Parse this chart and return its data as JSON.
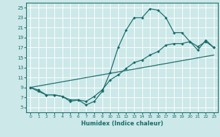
{
  "xlabel": "Humidex (Indice chaleur)",
  "bg_color": "#cce8e8",
  "grid_color": "#ffffff",
  "line_color": "#1a6b6b",
  "xlim": [
    -0.5,
    23.5
  ],
  "ylim": [
    4.0,
    26.0
  ],
  "yticks": [
    5,
    7,
    9,
    11,
    13,
    15,
    17,
    19,
    21,
    23,
    25
  ],
  "xticks": [
    0,
    1,
    2,
    3,
    4,
    5,
    6,
    7,
    8,
    9,
    10,
    11,
    12,
    13,
    14,
    15,
    16,
    17,
    18,
    19,
    20,
    21,
    22,
    23
  ],
  "line1_x": [
    0,
    1,
    2,
    3,
    4,
    5,
    6,
    7,
    8,
    9,
    10,
    11,
    12,
    13,
    14,
    15,
    16,
    17,
    18,
    19,
    20,
    21,
    22,
    23
  ],
  "line1_y": [
    9,
    8.2,
    7.5,
    7.5,
    7.2,
    6.2,
    6.5,
    5.5,
    6.2,
    8.2,
    12,
    17,
    20.5,
    23,
    23,
    24.8,
    24.5,
    23,
    20,
    20,
    18.2,
    16.5,
    18.5,
    17
  ],
  "line2_x": [
    0,
    1,
    2,
    3,
    4,
    5,
    6,
    7,
    8,
    9,
    10,
    11,
    12,
    13,
    14,
    15,
    16,
    17,
    18,
    19,
    20,
    21,
    22,
    23
  ],
  "line2_y": [
    9,
    8.5,
    7.5,
    7.5,
    7.2,
    6.5,
    6.5,
    6.2,
    7.2,
    8.5,
    10.5,
    11.5,
    12.8,
    14,
    14.5,
    15.5,
    16.2,
    17.5,
    17.8,
    17.8,
    18.2,
    17.2,
    18.2,
    17
  ],
  "line3_x": [
    0,
    23
  ],
  "line3_y": [
    9,
    15.5
  ]
}
